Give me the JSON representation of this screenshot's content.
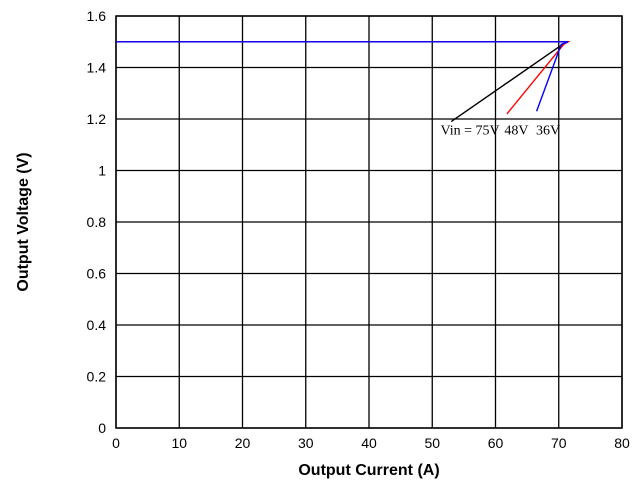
{
  "chart_data": {
    "type": "line",
    "title": "",
    "xlabel": "Output Current (A)",
    "ylabel": "Output Voltage (V)",
    "xlim": [
      0,
      80
    ],
    "ylim": [
      0,
      1.6
    ],
    "grid": true,
    "x_ticks": [
      0,
      10,
      20,
      30,
      40,
      50,
      60,
      70,
      80
    ],
    "x_tick_labels": [
      "0",
      "10",
      "20",
      "30",
      "40",
      "50",
      "60",
      "70",
      "80"
    ],
    "y_ticks": [
      0,
      0.2,
      0.4,
      0.6,
      0.8,
      1.0,
      1.2,
      1.4,
      1.6
    ],
    "y_tick_labels": [
      "0",
      "0.2",
      "0.4",
      "0.6",
      "0.8",
      "1",
      "1.2",
      "1.4",
      "1.6"
    ],
    "series": [
      {
        "name": "75V",
        "color": "#000000",
        "points": [
          [
            0,
            1.5
          ],
          [
            71.5,
            1.5
          ],
          [
            71.2,
            1.5
          ],
          [
            53.0,
            1.19
          ]
        ]
      },
      {
        "name": "48V",
        "color": "#ff0000",
        "points": [
          [
            0,
            1.5
          ],
          [
            71.5,
            1.5
          ],
          [
            70.8,
            1.49
          ],
          [
            61.8,
            1.22
          ]
        ]
      },
      {
        "name": "36V",
        "color": "#0000ff",
        "points": [
          [
            0,
            1.5
          ],
          [
            71.5,
            1.5
          ],
          [
            70.4,
            1.49
          ],
          [
            66.5,
            1.23
          ]
        ]
      }
    ],
    "annotations": [
      {
        "text": "Vin = 75V",
        "x": 51.3,
        "y": 1.14
      },
      {
        "text": "48V",
        "x": 61.4,
        "y": 1.14
      },
      {
        "text": "36V",
        "x": 66.4,
        "y": 1.14
      }
    ],
    "legend": "none"
  }
}
